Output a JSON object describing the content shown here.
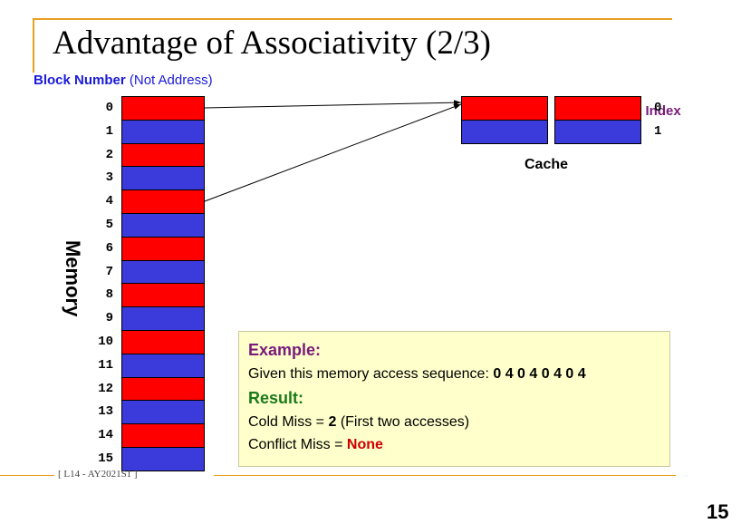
{
  "title": "Advantage of Associativity (2/3)",
  "block_header": {
    "bold": "Block Number",
    "rest": " (Not Address)"
  },
  "set_index_label": "Set Index",
  "memory_label": "Memory",
  "cache_label": "Cache",
  "memory_blocks": [
    {
      "num": "0",
      "color": "red"
    },
    {
      "num": "1",
      "color": "blue"
    },
    {
      "num": "2",
      "color": "red"
    },
    {
      "num": "3",
      "color": "blue"
    },
    {
      "num": "4",
      "color": "red"
    },
    {
      "num": "5",
      "color": "blue"
    },
    {
      "num": "6",
      "color": "red"
    },
    {
      "num": "7",
      "color": "blue"
    },
    {
      "num": "8",
      "color": "red"
    },
    {
      "num": "9",
      "color": "blue"
    },
    {
      "num": "10",
      "color": "red"
    },
    {
      "num": "11",
      "color": "blue"
    },
    {
      "num": "12",
      "color": "red"
    },
    {
      "num": "13",
      "color": "blue"
    },
    {
      "num": "14",
      "color": "red"
    },
    {
      "num": "15",
      "color": "blue"
    }
  ],
  "cache_sets": [
    {
      "index": "0",
      "color": "red"
    },
    {
      "index": "1",
      "color": "blue"
    }
  ],
  "colors": {
    "red": "#ff0000",
    "blue": "#3b3bdc",
    "accent": "#e8a020"
  },
  "example": {
    "heading": "Example:",
    "sequence_prefix": "Given this memory access sequence: ",
    "sequence": "0 4 0 4 0 4 0 4",
    "result_heading": "Result:",
    "cold_prefix": "Cold Miss = ",
    "cold_value": "2",
    "cold_suffix": " (First two accesses)",
    "conflict_prefix": "Conflict Miss = ",
    "conflict_value": "None"
  },
  "footer": "[ L14 - AY2021S1 ]",
  "page_number": "15"
}
